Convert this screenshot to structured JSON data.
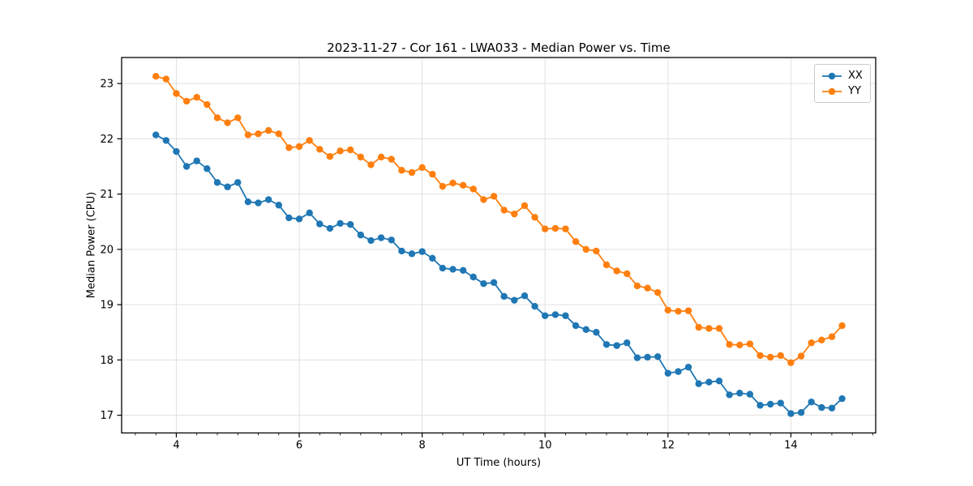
{
  "figure": {
    "background": "#ffffff",
    "spine_color": "#000000",
    "grid_color": "#e0e0e0"
  },
  "chart_data": {
    "type": "line",
    "title": "2023-11-27 - Cor 161 - LWA033 - Median Power vs. Time",
    "xlabel": "UT Time (hours)",
    "ylabel": "Median Power (CPU)",
    "xlim": [
      3.11,
      15.38
    ],
    "ylim": [
      16.68,
      23.47
    ],
    "xticks": [
      4,
      6,
      8,
      10,
      12,
      14
    ],
    "yticks": [
      17,
      18,
      19,
      20,
      21,
      22,
      23
    ],
    "xtick_minor_interval": 0.33333,
    "grid": true,
    "legend_position": "upper right",
    "marker": "circle",
    "x": [
      3.667,
      3.833,
      4.0,
      4.167,
      4.333,
      4.5,
      4.667,
      4.833,
      5.0,
      5.167,
      5.333,
      5.5,
      5.667,
      5.833,
      6.0,
      6.167,
      6.333,
      6.5,
      6.667,
      6.833,
      7.0,
      7.167,
      7.333,
      7.5,
      7.667,
      7.833,
      8.0,
      8.167,
      8.333,
      8.5,
      8.667,
      8.833,
      9.0,
      9.167,
      9.333,
      9.5,
      9.667,
      9.833,
      10.0,
      10.167,
      10.333,
      10.5,
      10.667,
      10.833,
      11.0,
      11.167,
      11.333,
      11.5,
      11.667,
      11.833,
      12.0,
      12.167,
      12.333,
      12.5,
      12.667,
      12.833,
      13.0,
      13.167,
      13.333,
      13.5,
      13.667,
      13.833,
      14.0,
      14.167,
      14.333,
      14.5,
      14.667,
      14.833
    ],
    "series": [
      {
        "name": "XX",
        "color": "#1f77b4",
        "values": [
          22.07,
          21.97,
          21.77,
          21.5,
          21.6,
          21.46,
          21.21,
          21.13,
          21.21,
          20.86,
          20.84,
          20.9,
          20.8,
          20.57,
          20.55,
          20.66,
          20.46,
          20.38,
          20.47,
          20.45,
          20.26,
          20.16,
          20.21,
          20.17,
          19.97,
          19.92,
          19.96,
          19.84,
          19.66,
          19.64,
          19.62,
          19.5,
          19.38,
          19.4,
          19.15,
          19.08,
          19.16,
          18.97,
          18.8,
          18.82,
          18.8,
          18.62,
          18.55,
          18.5,
          18.28,
          18.26,
          18.31,
          18.04,
          18.05,
          18.06,
          17.76,
          17.79,
          17.87,
          17.57,
          17.6,
          17.62,
          17.37,
          17.4,
          17.38,
          17.18,
          17.2,
          17.22,
          17.03,
          17.05,
          17.24,
          17.14,
          17.13,
          17.3
        ]
      },
      {
        "name": "YY",
        "color": "#ff7f0e",
        "values": [
          23.13,
          23.08,
          22.82,
          22.68,
          22.75,
          22.62,
          22.38,
          22.29,
          22.38,
          22.07,
          22.09,
          22.15,
          22.09,
          21.84,
          21.86,
          21.97,
          21.81,
          21.68,
          21.78,
          21.8,
          21.67,
          21.53,
          21.67,
          21.63,
          21.43,
          21.39,
          21.48,
          21.36,
          21.14,
          21.2,
          21.16,
          21.09,
          20.9,
          20.96,
          20.71,
          20.64,
          20.79,
          20.58,
          20.37,
          20.38,
          20.37,
          20.14,
          20.0,
          19.97,
          19.72,
          19.61,
          19.56,
          19.34,
          19.3,
          19.22,
          18.9,
          18.88,
          18.89,
          18.59,
          18.57,
          18.57,
          18.28,
          18.27,
          18.29,
          18.08,
          18.05,
          18.08,
          17.95,
          18.07,
          18.31,
          18.36,
          18.42,
          18.62
        ]
      }
    ]
  }
}
